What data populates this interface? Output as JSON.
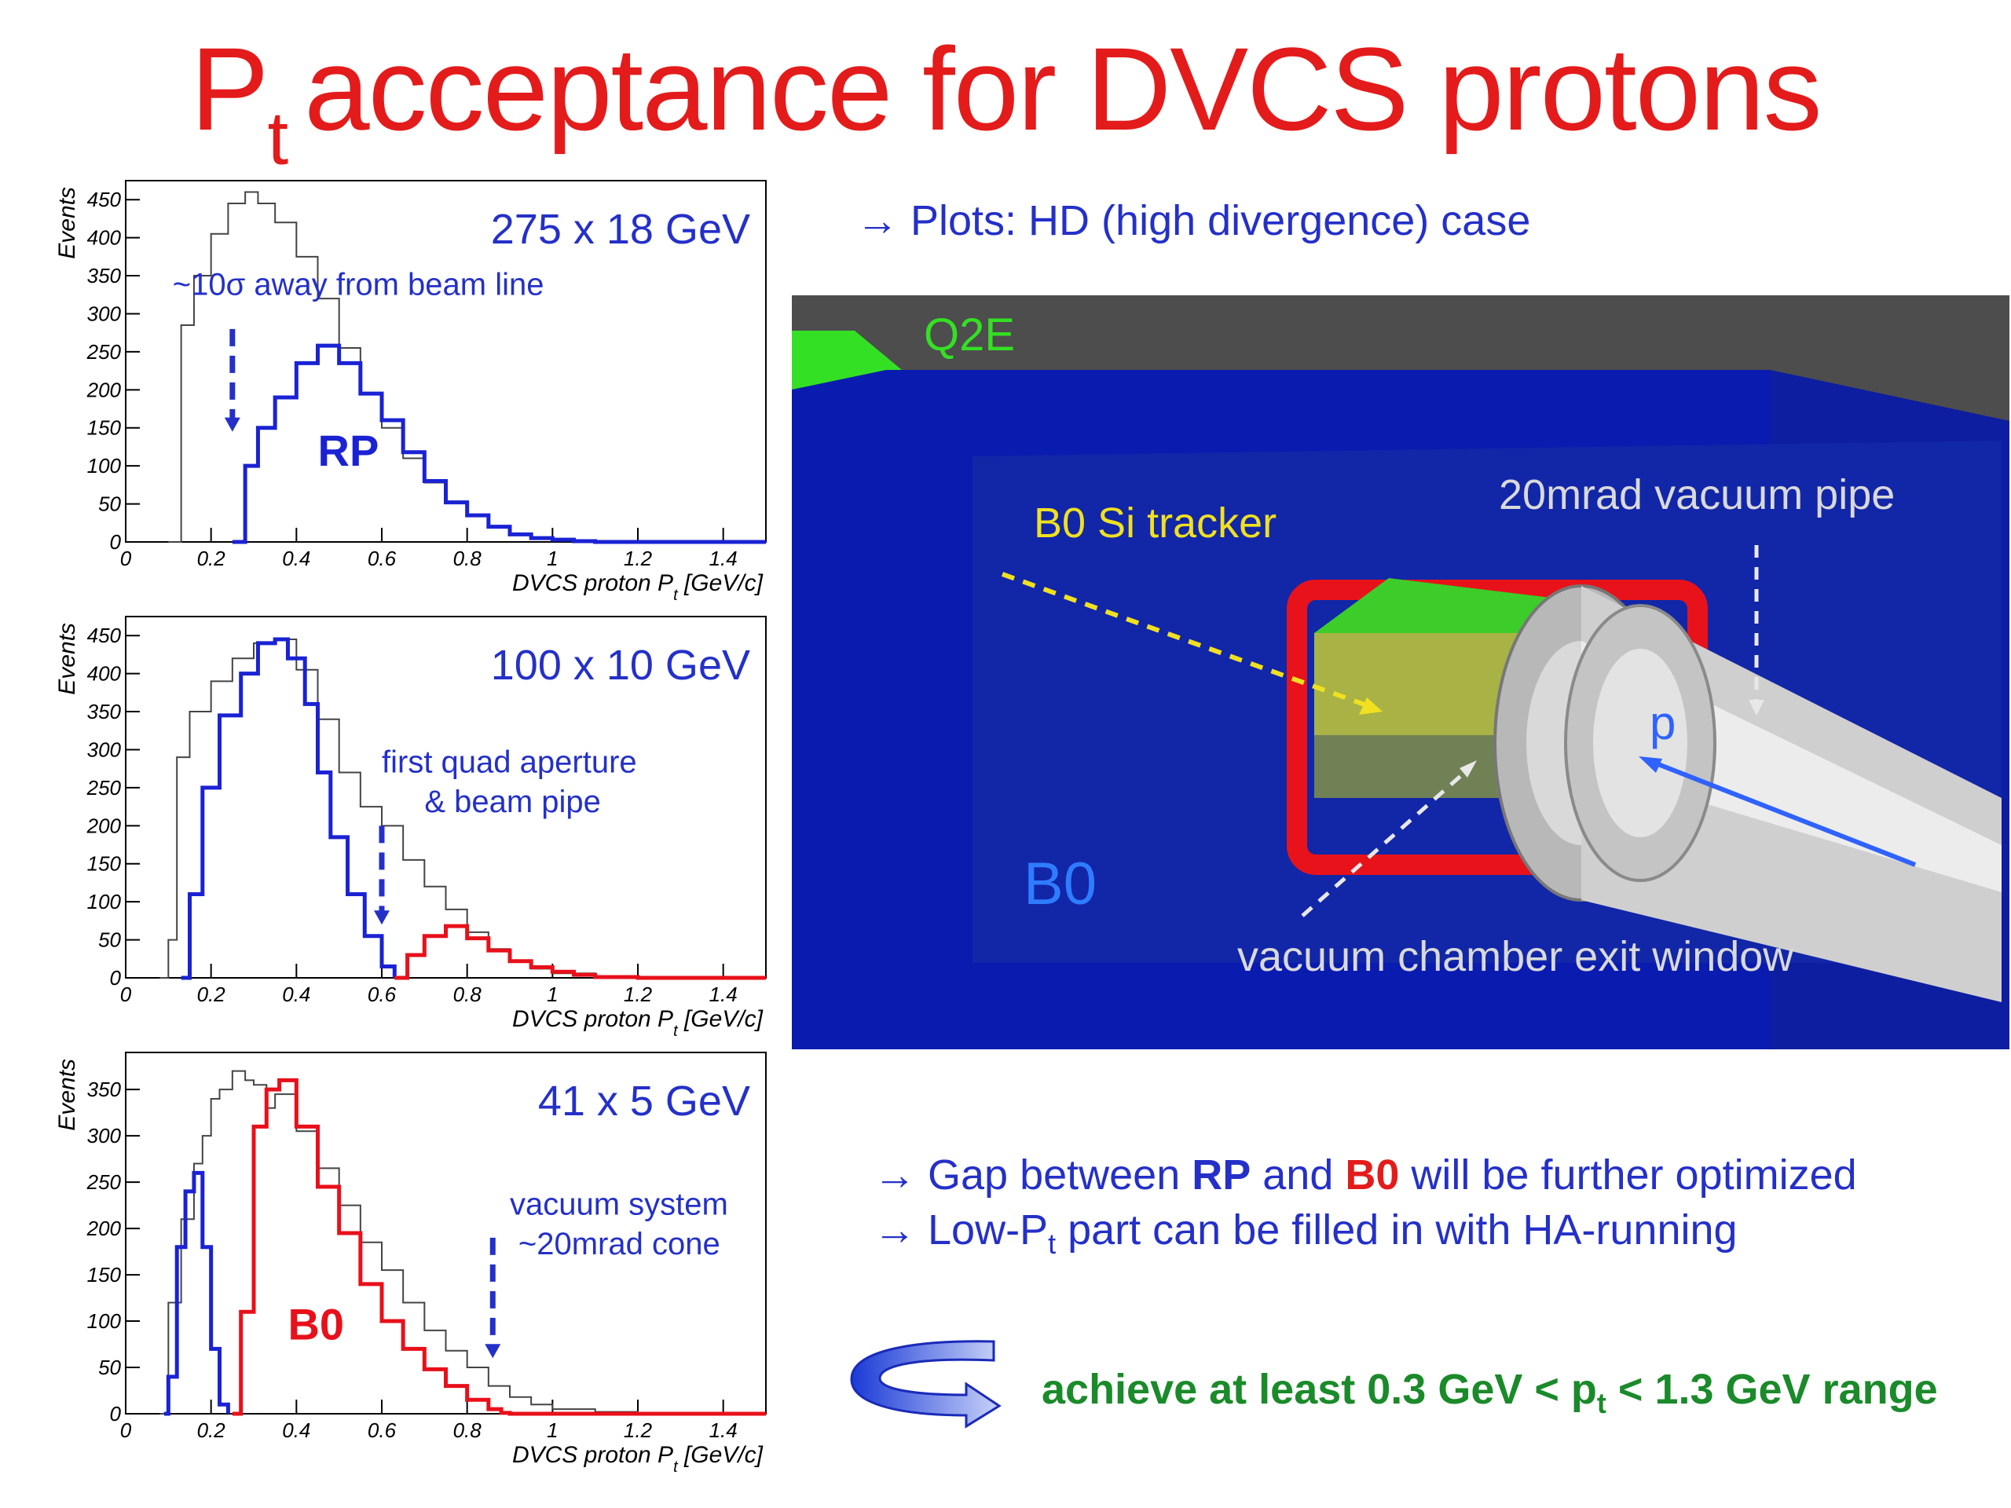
{
  "title": {
    "main": "P",
    "sub": "t",
    "rest": "acceptance for DVCS protons"
  },
  "colors": {
    "title": "#e41b1b",
    "blue_text": "#2430c8",
    "green_text": "#1b8a2a",
    "rp_line": "#1a22d4",
    "b0_line": "#e8101a",
    "total_line": "#444444"
  },
  "notes": {
    "hd_case": "→ Plots: HD (high divergence) case",
    "gap_pre": "→ Gap between ",
    "gap_rp": "RP",
    "gap_and": " and ",
    "gap_b0": "B0",
    "gap_post": " will be further optimized",
    "lowpt_pre": "→ Low-P",
    "lowpt_sub": "t",
    "lowpt_post": " part can be filled in with HA-running",
    "achieve_pre": "achieve at least 0.3 GeV < p",
    "achieve_sub": "t",
    "achieve_post": " < 1.3 GeV range"
  },
  "detector": {
    "labels": {
      "q2e": "Q2E",
      "si_tracker": "B0 Si tracker",
      "vacuum_pipe": "20mrad vacuum pipe",
      "proton": "p",
      "b0": "B0",
      "exit_window": "vacuum chamber exit window"
    },
    "icon": "curved-arrow-icon"
  },
  "chart_data": [
    {
      "type": "line",
      "title": "275 x 18 GeV",
      "xlabel": "DVCS proton P_t  [GeV/c]",
      "xlabel_main": "DVCS proton P",
      "xlabel_sub": "t",
      "xlabel_unit": "[GeV/c]",
      "ylabel": "Events",
      "xlim": [
        0,
        1.5
      ],
      "ylim": [
        0,
        475
      ],
      "xticks": [
        0,
        0.2,
        0.4,
        0.6,
        0.8,
        1,
        1.2,
        1.4
      ],
      "xtick_labels": [
        "0",
        "0.2",
        "0.4",
        "0.6",
        "0.8",
        "1",
        "1.2",
        "1.4"
      ],
      "yticks": [
        0,
        50,
        100,
        150,
        200,
        250,
        300,
        350,
        400,
        450
      ],
      "ytick_labels": [
        "0",
        "50",
        "100",
        "150",
        "200",
        "250",
        "300",
        "350",
        "400",
        "450"
      ],
      "annotations": [
        {
          "text": "~10σ away from beam line",
          "x": 0.11,
          "y": 325
        },
        {
          "text": "RP",
          "x": 0.45,
          "y": 100,
          "bold": true,
          "color": "#1a22d4"
        }
      ],
      "arrows": [
        {
          "x": 0.25,
          "y_from": 280,
          "y_to": 145
        }
      ],
      "series": [
        {
          "name": "",
          "color": "#444444",
          "x": [
            0.1,
            0.13,
            0.16,
            0.2,
            0.24,
            0.28,
            0.31,
            0.35,
            0.4,
            0.45,
            0.5,
            0.55,
            0.6,
            0.65,
            0.7,
            0.75,
            0.8,
            0.85,
            0.9,
            0.95,
            1.0,
            1.05,
            1.1,
            1.2,
            1.3,
            1.4,
            1.5
          ],
          "y": [
            0,
            285,
            350,
            405,
            445,
            460,
            445,
            420,
            375,
            320,
            255,
            195,
            150,
            110,
            78,
            52,
            35,
            20,
            10,
            5,
            3,
            1,
            0,
            0,
            0,
            0,
            0
          ]
        },
        {
          "name": "",
          "color": "#1a22d4",
          "x": [
            0.25,
            0.28,
            0.31,
            0.35,
            0.4,
            0.45,
            0.5,
            0.55,
            0.6,
            0.65,
            0.7,
            0.75,
            0.8,
            0.85,
            0.9,
            0.95,
            1.0,
            1.05,
            1.1,
            1.2,
            1.3,
            1.4,
            1.5
          ],
          "y": [
            0,
            100,
            150,
            190,
            235,
            258,
            235,
            195,
            160,
            118,
            80,
            52,
            35,
            20,
            10,
            5,
            3,
            1,
            0,
            0,
            0,
            0,
            0
          ]
        }
      ]
    },
    {
      "type": "line",
      "title": "100 x 10 GeV",
      "xlabel": "DVCS proton P_t  [GeV/c]",
      "xlabel_main": "DVCS proton P",
      "xlabel_sub": "t",
      "xlabel_unit": "[GeV/c]",
      "ylabel": "Events",
      "xlim": [
        0,
        1.5
      ],
      "ylim": [
        0,
        475
      ],
      "xticks": [
        0,
        0.2,
        0.4,
        0.6,
        0.8,
        1,
        1.2,
        1.4
      ],
      "xtick_labels": [
        "0",
        "0.2",
        "0.4",
        "0.6",
        "0.8",
        "1",
        "1.2",
        "1.4"
      ],
      "yticks": [
        0,
        50,
        100,
        150,
        200,
        250,
        300,
        350,
        400,
        450
      ],
      "ytick_labels": [
        "0",
        "50",
        "100",
        "150",
        "200",
        "250",
        "300",
        "350",
        "400",
        "450"
      ],
      "annotations": [
        {
          "text": "first quad aperture",
          "x": 0.6,
          "y": 270
        },
        {
          "text": "& beam pipe",
          "x": 0.7,
          "y": 218
        }
      ],
      "arrows": [
        {
          "x": 0.6,
          "y_from": 200,
          "y_to": 70
        }
      ],
      "series": [
        {
          "name": "",
          "color": "#444444",
          "x": [
            0.08,
            0.1,
            0.12,
            0.15,
            0.2,
            0.25,
            0.3,
            0.35,
            0.4,
            0.45,
            0.5,
            0.55,
            0.6,
            0.65,
            0.7,
            0.75,
            0.8,
            0.85,
            0.9,
            0.95,
            1.0,
            1.1,
            1.2,
            1.3,
            1.4,
            1.5
          ],
          "y": [
            0,
            50,
            290,
            350,
            390,
            420,
            440,
            445,
            405,
            340,
            270,
            225,
            200,
            155,
            120,
            90,
            60,
            38,
            22,
            12,
            6,
            2,
            0,
            0,
            0,
            0
          ]
        },
        {
          "name": "",
          "color": "#1a22d4",
          "x": [
            0.13,
            0.15,
            0.18,
            0.22,
            0.27,
            0.31,
            0.35,
            0.38,
            0.42,
            0.45,
            0.48,
            0.52,
            0.56,
            0.6,
            0.63
          ],
          "y": [
            0,
            110,
            250,
            345,
            400,
            440,
            445,
            420,
            360,
            270,
            185,
            110,
            55,
            15,
            0
          ]
        },
        {
          "name": "",
          "color": "#e8101a",
          "x": [
            0.63,
            0.66,
            0.7,
            0.75,
            0.8,
            0.85,
            0.9,
            0.95,
            1.0,
            1.05,
            1.1,
            1.2,
            1.5
          ],
          "y": [
            0,
            30,
            55,
            68,
            52,
            36,
            22,
            14,
            8,
            4,
            1,
            0,
            0
          ]
        }
      ]
    },
    {
      "type": "line",
      "title": "41 x  5 GeV",
      "xlabel": "DVCS proton P_t  [GeV/c]",
      "xlabel_main": "DVCS proton P",
      "xlabel_sub": "t",
      "xlabel_unit": "[GeV/c]",
      "ylabel": "Events",
      "xlim": [
        0,
        1.5
      ],
      "ylim": [
        0,
        390
      ],
      "xticks": [
        0,
        0.2,
        0.4,
        0.6,
        0.8,
        1,
        1.2,
        1.4
      ],
      "xtick_labels": [
        "0",
        "0.2",
        "0.4",
        "0.6",
        "0.8",
        "1",
        "1.2",
        "1.4"
      ],
      "yticks": [
        0,
        50,
        100,
        150,
        200,
        250,
        300,
        350
      ],
      "ytick_labels": [
        "0",
        "50",
        "100",
        "150",
        "200",
        "250",
        "300",
        "350"
      ],
      "annotations": [
        {
          "text": "vacuum system",
          "x": 0.9,
          "y": 215
        },
        {
          "text": "~20mrad cone",
          "x": 0.92,
          "y": 172
        },
        {
          "text": "B0",
          "x": 0.38,
          "y": 80,
          "bold": true,
          "color": "#e8101a"
        }
      ],
      "arrows": [
        {
          "x": 0.86,
          "y_from": 190,
          "y_to": 60
        }
      ],
      "series": [
        {
          "name": "",
          "color": "#444444",
          "x": [
            0.08,
            0.1,
            0.13,
            0.16,
            0.18,
            0.2,
            0.22,
            0.25,
            0.28,
            0.3,
            0.33,
            0.35,
            0.4,
            0.45,
            0.5,
            0.55,
            0.6,
            0.65,
            0.7,
            0.75,
            0.8,
            0.85,
            0.9,
            0.95,
            1.0,
            1.1,
            1.2,
            1.5
          ],
          "y": [
            0,
            120,
            210,
            270,
            300,
            340,
            350,
            370,
            360,
            355,
            330,
            345,
            305,
            265,
            225,
            185,
            155,
            120,
            90,
            68,
            50,
            30,
            18,
            10,
            5,
            2,
            0,
            0
          ]
        },
        {
          "name": "",
          "color": "#1a22d4",
          "x": [
            0.09,
            0.1,
            0.12,
            0.14,
            0.16,
            0.18,
            0.2,
            0.22,
            0.24
          ],
          "y": [
            0,
            40,
            180,
            240,
            260,
            180,
            70,
            10,
            0
          ]
        },
        {
          "name": "",
          "color": "#e8101a",
          "x": [
            0.25,
            0.27,
            0.3,
            0.33,
            0.36,
            0.4,
            0.45,
            0.5,
            0.55,
            0.6,
            0.65,
            0.7,
            0.75,
            0.8,
            0.85,
            0.88,
            0.9,
            1.5
          ],
          "y": [
            0,
            110,
            310,
            350,
            360,
            310,
            245,
            195,
            140,
            100,
            70,
            48,
            30,
            15,
            5,
            1,
            0,
            0
          ]
        }
      ]
    }
  ]
}
